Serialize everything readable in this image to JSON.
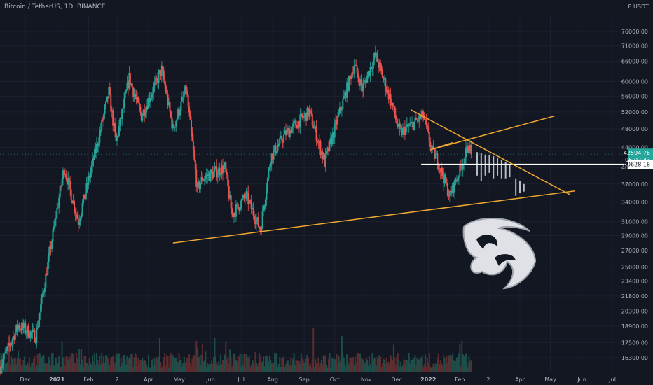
{
  "header": {
    "title": "Bitcoin / TetherUS, 1D, BINANCE",
    "unit_prefix": "8",
    "unit": "USDT"
  },
  "colors": {
    "background": "#131722",
    "up": "#26a69a",
    "down": "#ef5350",
    "trendline": "#f0a830",
    "price_label": "#26a69a",
    "projection": "#b8bcc6",
    "axis_text": "#b2b5be"
  },
  "chart_data": {
    "type": "candlestick",
    "title": "Bitcoin / TetherUS, 1D, BINANCE",
    "y_scale": "log",
    "ylim": [
      15200,
      82000
    ],
    "y_ticks": [
      16300,
      17500,
      18900,
      20300,
      21800,
      23400,
      25000,
      27000,
      29000,
      31000,
      34000,
      37000,
      40000,
      44000,
      48000,
      52000,
      56000,
      60000,
      66000,
      71000,
      76000
    ],
    "x_ticks": [
      "Dec",
      "2021",
      "Feb",
      "2",
      "Apr",
      "May",
      "Jun",
      "Jul",
      "Aug",
      "Sep",
      "Oct",
      "Nov",
      "Dec",
      "2022",
      "Feb",
      "2",
      "Apr",
      "May",
      "Jun",
      "Jul"
    ],
    "x_tick_dates": [
      "2020-12-01",
      "2021-01-01",
      "2021-02-01",
      "2021-03-01",
      "2021-04-01",
      "2021-05-01",
      "2021-06-01",
      "2021-07-01",
      "2021-08-01",
      "2021-09-01",
      "2021-10-01",
      "2021-11-01",
      "2021-12-01",
      "2022-01-01",
      "2022-02-01",
      "2022-03-01",
      "2022-04-01",
      "2022-05-01",
      "2022-06-01",
      "2022-07-01"
    ],
    "xlim": [
      "2020-11-06",
      "2022-07-14"
    ],
    "price_path": [
      {
        "date": "2020-11-06",
        "price": 15600
      },
      {
        "date": "2020-11-24",
        "price": 19000
      },
      {
        "date": "2020-12-11",
        "price": 18000
      },
      {
        "date": "2021-01-08",
        "price": 40000
      },
      {
        "date": "2021-01-22",
        "price": 31000
      },
      {
        "date": "2021-02-10",
        "price": 45000
      },
      {
        "date": "2021-02-21",
        "price": 57000
      },
      {
        "date": "2021-02-28",
        "price": 45000
      },
      {
        "date": "2021-03-13",
        "price": 61000
      },
      {
        "date": "2021-03-25",
        "price": 51000
      },
      {
        "date": "2021-04-14",
        "price": 63500
      },
      {
        "date": "2021-04-25",
        "price": 48000
      },
      {
        "date": "2021-05-08",
        "price": 58000
      },
      {
        "date": "2021-05-19",
        "price": 36000
      },
      {
        "date": "2021-05-24",
        "price": 38000
      },
      {
        "date": "2021-06-15",
        "price": 40000
      },
      {
        "date": "2021-06-22",
        "price": 32000
      },
      {
        "date": "2021-07-06",
        "price": 35000
      },
      {
        "date": "2021-07-20",
        "price": 29800
      },
      {
        "date": "2021-07-30",
        "price": 42000
      },
      {
        "date": "2021-08-14",
        "price": 47000
      },
      {
        "date": "2021-09-06",
        "price": 52000
      },
      {
        "date": "2021-09-21",
        "price": 41000
      },
      {
        "date": "2021-10-01",
        "price": 48000
      },
      {
        "date": "2021-10-20",
        "price": 65000
      },
      {
        "date": "2021-10-28",
        "price": 58000
      },
      {
        "date": "2021-11-10",
        "price": 68000
      },
      {
        "date": "2021-11-26",
        "price": 54000
      },
      {
        "date": "2021-12-04",
        "price": 47000
      },
      {
        "date": "2021-12-27",
        "price": 51000
      },
      {
        "date": "2022-01-05",
        "price": 43000
      },
      {
        "date": "2022-01-10",
        "price": 41500
      },
      {
        "date": "2022-01-22",
        "price": 35000
      },
      {
        "date": "2022-01-28",
        "price": 37500
      },
      {
        "date": "2022-02-10",
        "price": 44500
      },
      {
        "date": "2022-02-12",
        "price": 42594.76
      }
    ],
    "last_price": "42594.76",
    "countdown": "06:02:43",
    "horizontal_level": {
      "value": 40628.18,
      "label": "40628.18"
    },
    "trendlines": [
      {
        "from": {
          "date": "2021-04-25",
          "price": 28000
        },
        "to": {
          "date": "2022-05-25",
          "price": 35800
        }
      },
      {
        "from": {
          "date": "2021-12-15",
          "price": 52500
        },
        "to": {
          "date": "2022-05-20",
          "price": 35200
        }
      },
      {
        "from": {
          "date": "2022-01-03",
          "price": 43500
        },
        "to": {
          "date": "2022-05-05",
          "price": 51000
        }
      },
      {
        "from": {
          "date": "2022-01-03",
          "price": 43500
        },
        "to": {
          "date": "2022-01-25",
          "price": 45000
        }
      }
    ],
    "projection_bars": [
      {
        "date": "2022-02-18",
        "high": 43000,
        "low": 38500
      },
      {
        "date": "2022-02-22",
        "high": 42800,
        "low": 37500
      },
      {
        "date": "2022-02-26",
        "high": 42500,
        "low": 38500
      },
      {
        "date": "2022-03-02",
        "high": 42500,
        "low": 39000
      },
      {
        "date": "2022-03-06",
        "high": 42200,
        "low": 38000
      },
      {
        "date": "2022-03-10",
        "high": 41800,
        "low": 38500
      },
      {
        "date": "2022-03-14",
        "high": 41500,
        "low": 38000
      },
      {
        "date": "2022-03-18",
        "high": 41000,
        "low": 38000
      },
      {
        "date": "2022-03-22",
        "high": 40500,
        "low": 38200
      },
      {
        "date": "2022-03-28",
        "high": 38000,
        "low": 35000
      },
      {
        "date": "2022-04-01",
        "high": 37500,
        "low": 35500
      },
      {
        "date": "2022-04-05",
        "high": 37000,
        "low": 35700
      }
    ]
  }
}
